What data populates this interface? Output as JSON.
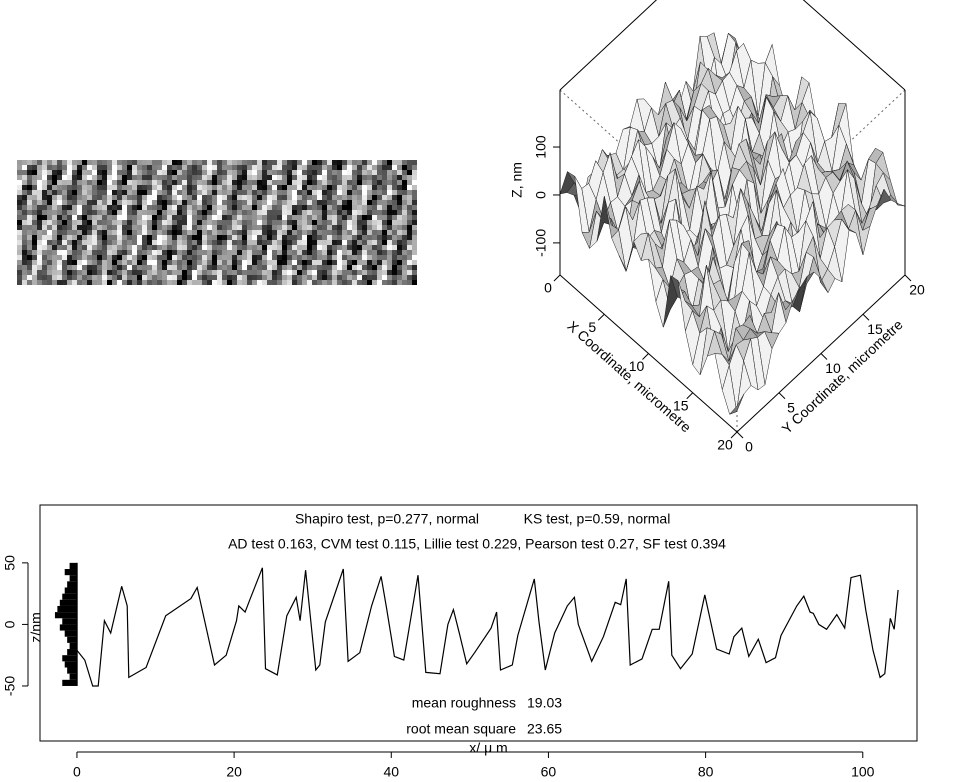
{
  "chart_data": [
    {
      "type": "surface",
      "zlabel": "Z, nm",
      "xlabel": "X Coordinate, micrometre",
      "ylabel": "Y Coordinate, micrometre",
      "xlim": [
        0,
        20
      ],
      "ylim": [
        0,
        20
      ],
      "zlim": [
        -167,
        219
      ],
      "xticks": [
        0,
        5,
        10,
        15,
        20
      ],
      "yticks": [
        0,
        5,
        10,
        15,
        20
      ],
      "zticks": [
        -100,
        0,
        100
      ]
    },
    {
      "type": "line",
      "annotations": [
        "Shapiro test, p=0.277, normal",
        "KS test, p=0.59, normal",
        "AD test 0.163, CVM test 0.115, Lillie test 0.229, Pearson test 0.27, SF test 0.394"
      ],
      "stats": [
        {
          "label": "mean roughness",
          "value": 19.03
        },
        {
          "label": "root mean square",
          "value": 23.65
        }
      ],
      "xlabel": "x/ μ m",
      "ylabel": "z/nm",
      "xlim": [
        -4.7,
        106.9
      ],
      "ylim": [
        -94.7,
        97
      ],
      "xticks": [
        0,
        20,
        40,
        60,
        80,
        100
      ],
      "yticks": [
        -50,
        0,
        50
      ],
      "color": "#000000",
      "x": [
        0,
        1,
        2,
        2.7,
        3.5,
        4.3,
        5.7,
        6.4,
        6.6,
        8.8,
        11.3,
        14.5,
        15.3,
        17.5,
        19,
        20.3,
        20.6,
        21.4,
        22,
        23.6,
        24,
        25.5,
        26.7,
        27.9,
        28.4,
        29.1,
        30.4,
        30.9,
        31.6,
        33.9,
        34.5,
        36,
        37.5,
        38.7,
        39.4,
        40.4,
        41.6,
        43.4,
        44.4,
        46.2,
        47.2,
        47.9,
        48.7,
        49.6,
        50.6,
        52.7,
        53.4,
        53.9,
        55.4,
        56.1,
        58.2,
        58.8,
        59.6,
        60.8,
        62.4,
        63.3,
        63.8,
        65.5,
        67,
        68.5,
        69.2,
        69.9,
        70.4,
        71.9,
        73.2,
        74.1,
        75.3,
        75.7,
        76.8,
        78.3,
        79.9,
        81.4,
        83,
        83.6,
        84.6,
        85.5,
        86.7,
        87.7,
        88.9,
        89.6,
        91.6,
        92.5,
        93.3,
        93.7,
        94.4,
        95.4,
        96.7,
        97.7,
        98.5,
        99.7,
        100.4,
        101.3,
        102.2,
        102.8,
        103.5,
        104,
        104.5
      ],
      "values": [
        -21,
        -29,
        -50,
        -50,
        3,
        -7,
        31,
        15,
        -43,
        -35,
        7,
        21,
        30,
        -33,
        -25,
        3,
        15,
        10,
        20,
        46,
        -36,
        -41,
        7,
        22,
        3,
        44,
        -37,
        -33,
        2,
        45,
        -30,
        -23,
        15,
        39,
        13,
        -26,
        -29,
        40,
        -39,
        -40,
        0,
        12,
        -8,
        -32,
        -23,
        -3,
        10,
        -37,
        -33,
        -9,
        37,
        2,
        -37,
        -7,
        15,
        22,
        0,
        -30,
        -10,
        18,
        16,
        37,
        -33,
        -28,
        -4,
        -4,
        35,
        -25,
        -36,
        -24,
        24,
        -20,
        -24,
        -10,
        -3,
        -26,
        -12,
        -31,
        -27,
        -9,
        15,
        23,
        10,
        9,
        0,
        -4,
        8,
        -3,
        38,
        40,
        11,
        -21,
        -43,
        -40,
        5,
        -4,
        28
      ],
      "hist": {
        "bins": [
          -50,
          -45,
          -40,
          -35,
          -30,
          -25,
          -20,
          -15,
          -10,
          -5,
          0,
          5,
          10,
          15,
          20,
          25,
          30,
          35,
          40,
          45,
          50
        ],
        "counts": [
          6,
          3,
          4,
          5,
          6,
          4,
          3,
          4,
          5,
          7,
          6,
          9,
          8,
          7,
          6,
          5,
          4,
          3,
          5,
          3
        ]
      }
    }
  ]
}
